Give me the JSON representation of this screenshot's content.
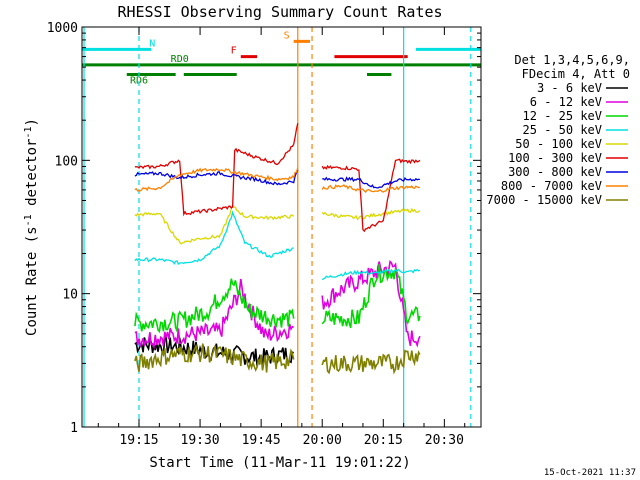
{
  "chart_data": {
    "type": "line",
    "title": "RHESSI Observing Summary Count Rates",
    "xlabel": "Start Time (11-Mar-11 19:01:22)",
    "ylabel_parts": [
      "Count Rate (s",
      "-1",
      " detector",
      "-1",
      ")"
    ],
    "y_log": true,
    "ylim": [
      1,
      1000
    ],
    "xlim_min": [
      1141,
      1239
    ],
    "x_ticks": [
      {
        "t": 1155,
        "label": "19:15"
      },
      {
        "t": 1170,
        "label": "19:30"
      },
      {
        "t": 1185,
        "label": "19:45"
      },
      {
        "t": 1200,
        "label": "20:00"
      },
      {
        "t": 1215,
        "label": "20:15"
      },
      {
        "t": 1230,
        "label": "20:30"
      }
    ],
    "y_ticks": [
      {
        "v": 1,
        "label": "1"
      },
      {
        "v": 10,
        "label": "10"
      },
      {
        "v": 100,
        "label": "100"
      },
      {
        "v": 1000,
        "label": "1000"
      }
    ],
    "legend_header": [
      "Det 1,3,4,5,6,9,",
      "FDecim 4, Att 0"
    ],
    "series": [
      {
        "name": "3 - 6 keV",
        "color": "#000000",
        "segments": [
          [
            [
              1154,
              4.2
            ],
            [
              1165,
              4.0
            ],
            [
              1175,
              3.6
            ],
            [
              1185,
              3.3
            ],
            [
              1193,
              3.6
            ]
          ]
        ]
      },
      {
        "name": "6 - 12 keV",
        "color": "#e000e0",
        "segments": [
          [
            [
              1154,
              4.6
            ],
            [
              1163,
              4.8
            ],
            [
              1175,
              5.2
            ],
            [
              1180,
              11
            ],
            [
              1183,
              7
            ],
            [
              1186,
              4.8
            ],
            [
              1193,
              5.6
            ]
          ],
          [
            [
              1200,
              8.5
            ],
            [
              1204,
              10.5
            ],
            [
              1209,
              12.5
            ],
            [
              1214,
              15
            ],
            [
              1218,
              16
            ],
            [
              1221,
              4.6
            ],
            [
              1224,
              4.8
            ]
          ]
        ]
      },
      {
        "name": "12 - 25 keV",
        "color": "#00d800",
        "segments": [
          [
            [
              1154,
              6.0
            ],
            [
              1165,
              6.2
            ],
            [
              1172,
              7.5
            ],
            [
              1178,
              12
            ],
            [
              1182,
              7.5
            ],
            [
              1188,
              6.5
            ],
            [
              1193,
              6.5
            ]
          ],
          [
            [
              1200,
              6.5
            ],
            [
              1209,
              6.5
            ],
            [
              1213,
              14
            ],
            [
              1218,
              15
            ],
            [
              1221,
              6.8
            ],
            [
              1224,
              6.8
            ]
          ]
        ]
      },
      {
        "name": "25 - 50 keV",
        "color": "#00e0e0",
        "segments": [
          [
            [
              1154,
              18
            ],
            [
              1160,
              18
            ],
            [
              1165,
              17
            ],
            [
              1170,
              18
            ],
            [
              1175,
              23
            ],
            [
              1178,
              40
            ],
            [
              1181,
              24
            ],
            [
              1187,
              19
            ],
            [
              1193,
              22
            ]
          ],
          [
            [
              1200,
              13
            ],
            [
              1205,
              14
            ],
            [
              1209,
              14.5
            ],
            [
              1213,
              14.2
            ],
            [
              1218,
              15
            ],
            [
              1221,
              14.5
            ],
            [
              1224,
              15
            ]
          ]
        ]
      },
      {
        "name": "50 - 100 keV",
        "color": "#d8d800",
        "segments": [
          [
            [
              1154,
              39
            ],
            [
              1160,
              40
            ],
            [
              1165,
              24
            ],
            [
              1170,
              26
            ],
            [
              1175,
              27
            ],
            [
              1178,
              45
            ],
            [
              1181,
              38
            ],
            [
              1187,
              37
            ],
            [
              1193,
              38
            ]
          ],
          [
            [
              1200,
              40
            ],
            [
              1205,
              38
            ],
            [
              1209,
              37
            ],
            [
              1213,
              39
            ],
            [
              1218,
              41
            ],
            [
              1221,
              42
            ],
            [
              1224,
              42
            ]
          ]
        ]
      },
      {
        "name": "100 - 300 keV",
        "color": "#e00000",
        "segments": [
          [
            [
              1154,
              88
            ],
            [
              1160,
              90
            ],
            [
              1165,
              100
            ],
            [
              1166,
              40
            ],
            [
              1172,
              42
            ],
            [
              1178,
              45
            ],
            [
              1178.5,
              120
            ],
            [
              1184,
              105
            ],
            [
              1189,
              95
            ],
            [
              1193,
              130
            ],
            [
              1194,
              190
            ]
          ],
          [
            [
              1200,
              88
            ],
            [
              1205,
              88
            ],
            [
              1209,
              86
            ],
            [
              1210,
              30
            ],
            [
              1215,
              35
            ],
            [
              1218,
              100
            ],
            [
              1221,
              98
            ],
            [
              1224,
              100
            ]
          ]
        ]
      },
      {
        "name": "300 - 800 keV",
        "color": "#0000e0",
        "segments": [
          [
            [
              1154,
              78
            ],
            [
              1160,
              80
            ],
            [
              1165,
              74
            ],
            [
              1170,
              78
            ],
            [
              1175,
              80
            ],
            [
              1178,
              76
            ],
            [
              1184,
              72
            ],
            [
              1189,
              66
            ],
            [
              1193,
              70
            ],
            [
              1194,
              85
            ]
          ],
          [
            [
              1200,
              72
            ],
            [
              1205,
              72
            ],
            [
              1209,
              72
            ],
            [
              1213,
              62
            ],
            [
              1218,
              70
            ],
            [
              1221,
              72
            ],
            [
              1224,
              72
            ]
          ]
        ]
      },
      {
        "name": "800 - 7000 keV",
        "color": "#ff8000",
        "segments": [
          [
            [
              1154,
              60
            ],
            [
              1160,
              62
            ],
            [
              1165,
              78
            ],
            [
              1170,
              84
            ],
            [
              1175,
              86
            ],
            [
              1178,
              82
            ],
            [
              1184,
              76
            ],
            [
              1189,
              72
            ],
            [
              1193,
              75
            ],
            [
              1194,
              88
            ]
          ],
          [
            [
              1200,
              62
            ],
            [
              1205,
              64
            ],
            [
              1209,
              60
            ],
            [
              1213,
              58
            ],
            [
              1218,
              62
            ],
            [
              1221,
              63
            ],
            [
              1224,
              63
            ]
          ]
        ]
      },
      {
        "name": "7000 - 15000 keV",
        "color": "#808000",
        "segments": [
          [
            [
              1154,
              2.9
            ],
            [
              1158,
              3.2
            ],
            [
              1163,
              3.5
            ],
            [
              1170,
              3.6
            ],
            [
              1175,
              3.5
            ],
            [
              1180,
              3.2
            ],
            [
              1186,
              3.0
            ],
            [
              1193,
              3.2
            ]
          ],
          [
            [
              1200,
              3.0
            ],
            [
              1205,
              3.0
            ],
            [
              1209,
              3.0
            ],
            [
              1213,
              3.0
            ],
            [
              1218,
              3.0
            ],
            [
              1221,
              3.5
            ],
            [
              1224,
              3.5
            ]
          ]
        ]
      }
    ],
    "status_bars": [
      {
        "label": "N",
        "color": "#00e0e0",
        "level": 680,
        "segments": [
          [
            1141,
            1158
          ],
          [
            1223,
            1239
          ]
        ],
        "label_t": 1159,
        "label_pos": "end"
      },
      {
        "label": "S",
        "color": "#ff8000",
        "level": 780,
        "segments": [
          [
            1193,
            1197
          ]
        ],
        "label_t": 1192,
        "label_pos": "end"
      },
      {
        "label": "F",
        "color": "#e00000",
        "level": 600,
        "segments": [
          [
            1180,
            1184
          ],
          [
            1203,
            1221
          ]
        ],
        "label_t": 1179,
        "label_pos": "end"
      },
      {
        "label": "RD0",
        "color": "#008000",
        "level": 520,
        "segments": [
          [
            1141,
            1240
          ]
        ],
        "label_t": 1165,
        "label_pos": "middle"
      },
      {
        "label": "RD6",
        "color": "#008000",
        "level": 440,
        "segments": [
          [
            1152,
            1164
          ],
          [
            1166,
            1179
          ],
          [
            1211,
            1217
          ]
        ],
        "label_t": 1155,
        "label_pos": "middle"
      }
    ],
    "vlines": [
      {
        "t": 1141.5,
        "color": "#00e0e0",
        "dashed": false
      },
      {
        "t": 1155,
        "color": "#00e0e0",
        "dashed": true
      },
      {
        "t": 1220,
        "color": "#00e0e0",
        "dashed": false
      },
      {
        "t": 1236.5,
        "color": "#00e0e0",
        "dashed": true
      },
      {
        "t": 1194,
        "color": "#ff8000",
        "dashed": false
      },
      {
        "t": 1197.5,
        "color": "#ff8000",
        "dashed": true
      }
    ],
    "legend_placement": "right",
    "grid": false
  },
  "timestamp": "15-Oct-2021 11:37"
}
